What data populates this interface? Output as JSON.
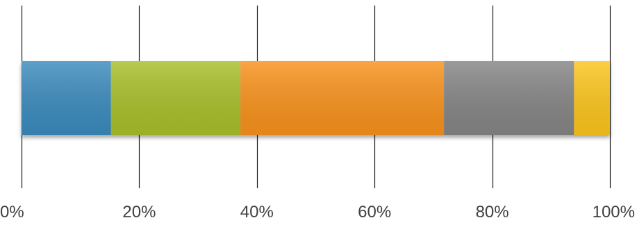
{
  "chart_data": {
    "type": "bar",
    "orientation": "horizontal",
    "stacked": true,
    "normalized_percent": true,
    "title": "",
    "xlabel": "",
    "ylabel": "",
    "xlim": [
      0,
      100
    ],
    "x_ticks": [
      0,
      20,
      40,
      60,
      80,
      100
    ],
    "x_tick_labels": [
      "0%",
      "20%",
      "40%",
      "60%",
      "80%",
      "100%"
    ],
    "grid": "vertical",
    "legend": "none",
    "categories": [
      ""
    ],
    "series": [
      {
        "values": [
          15.2
        ],
        "color": "#3a8bbd"
      },
      {
        "values": [
          22.0
        ],
        "color": "#a9bf2c"
      },
      {
        "values": [
          34.6
        ],
        "color": "#f8921c"
      },
      {
        "values": [
          22.1
        ],
        "color": "#858585"
      },
      {
        "values": [
          6.1
        ],
        "color": "#fcc51e"
      }
    ]
  }
}
